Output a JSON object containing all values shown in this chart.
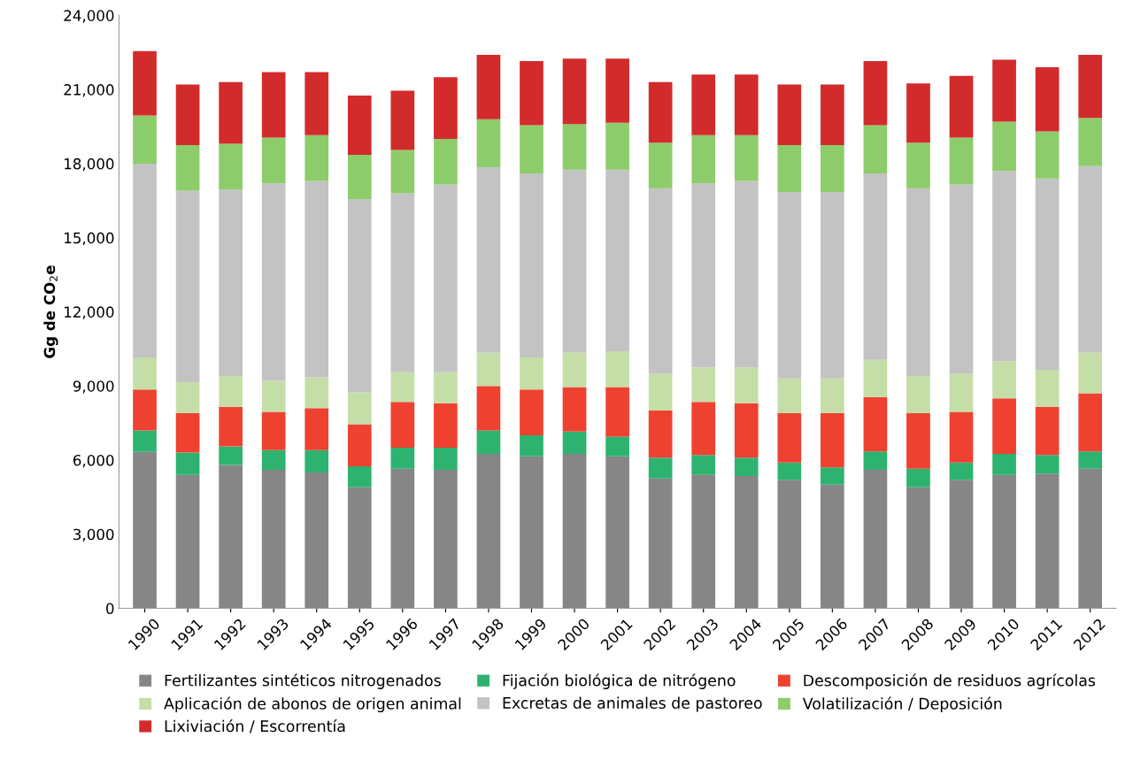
{
  "chart_data": {
    "type": "bar",
    "stacked": true,
    "ylabel": "Gg de CO$_{2}$e",
    "categories": [
      "1990",
      "1991",
      "1992",
      "1993",
      "1994",
      "1995",
      "1996",
      "1997",
      "1998",
      "1999",
      "2000",
      "2001",
      "2002",
      "2003",
      "2004",
      "2005",
      "2006",
      "2007",
      "2008",
      "2009",
      "2010",
      "2011",
      "2012"
    ],
    "ylim": [
      0,
      24000
    ],
    "yticks": [
      {
        "value": 0,
        "label": "0"
      },
      {
        "value": 3000,
        "label": "3,000"
      },
      {
        "value": 6000,
        "label": "6,000"
      },
      {
        "value": 9000,
        "label": "9,000"
      },
      {
        "value": 12000,
        "label": "12,000"
      },
      {
        "value": 15000,
        "label": "15,000"
      },
      {
        "value": 18000,
        "label": "18,000"
      },
      {
        "value": 21000,
        "label": "21,000"
      },
      {
        "value": 24000,
        "label": "24,000"
      }
    ],
    "grid": false,
    "legend": "bottom",
    "series": [
      {
        "name": "Fertilizantes sintéticos nitrogenados",
        "color": "#868686",
        "values": [
          6330,
          5400,
          5800,
          5600,
          5500,
          4900,
          5650,
          5600,
          6250,
          6150,
          6250,
          6150,
          5250,
          5400,
          5350,
          5200,
          5000,
          5600,
          4900,
          5200,
          5400,
          5450,
          5650
        ]
      },
      {
        "name": "Fijación biológica de nitrógeno",
        "color": "#2db36f",
        "values": [
          870,
          900,
          750,
          800,
          900,
          850,
          850,
          900,
          950,
          850,
          900,
          800,
          850,
          800,
          750,
          700,
          700,
          750,
          750,
          700,
          850,
          750,
          700
        ]
      },
      {
        "name": "Descomposición de residuos agrícolas",
        "color": "#ef4130",
        "values": [
          1650,
          1600,
          1600,
          1550,
          1700,
          1700,
          1850,
          1800,
          1800,
          1850,
          1800,
          2000,
          1900,
          2150,
          2200,
          2000,
          2200,
          2200,
          2250,
          2050,
          2250,
          1950,
          2350
        ]
      },
      {
        "name": "Aplicación de abonos de origen animal",
        "color": "#c5dea8",
        "values": [
          1300,
          1250,
          1250,
          1250,
          1250,
          1300,
          1200,
          1250,
          1350,
          1300,
          1400,
          1450,
          1500,
          1400,
          1450,
          1400,
          1400,
          1500,
          1500,
          1550,
          1500,
          1500,
          1650
        ]
      },
      {
        "name": "Excretas de animales de pastoreo",
        "color": "#c3c3c3",
        "values": [
          7850,
          7750,
          7550,
          8000,
          7950,
          7800,
          7250,
          7600,
          7500,
          7450,
          7400,
          7350,
          7500,
          7450,
          7550,
          7550,
          7550,
          7550,
          7600,
          7650,
          7700,
          7750,
          7550
        ]
      },
      {
        "name": "Volatilización / Deposición",
        "color": "#8dcc6a",
        "values": [
          1950,
          1850,
          1850,
          1850,
          1850,
          1800,
          1750,
          1850,
          1950,
          1950,
          1850,
          1900,
          1850,
          1950,
          1850,
          1900,
          1900,
          1950,
          1850,
          1900,
          2000,
          1900,
          1950
        ]
      },
      {
        "name": "Lixiviación / Escorrentía",
        "color": "#d22b2b",
        "values": [
          2600,
          2450,
          2500,
          2650,
          2550,
          2400,
          2400,
          2500,
          2600,
          2600,
          2650,
          2600,
          2450,
          2450,
          2450,
          2450,
          2450,
          2600,
          2400,
          2500,
          2500,
          2600,
          2550
        ]
      }
    ]
  }
}
